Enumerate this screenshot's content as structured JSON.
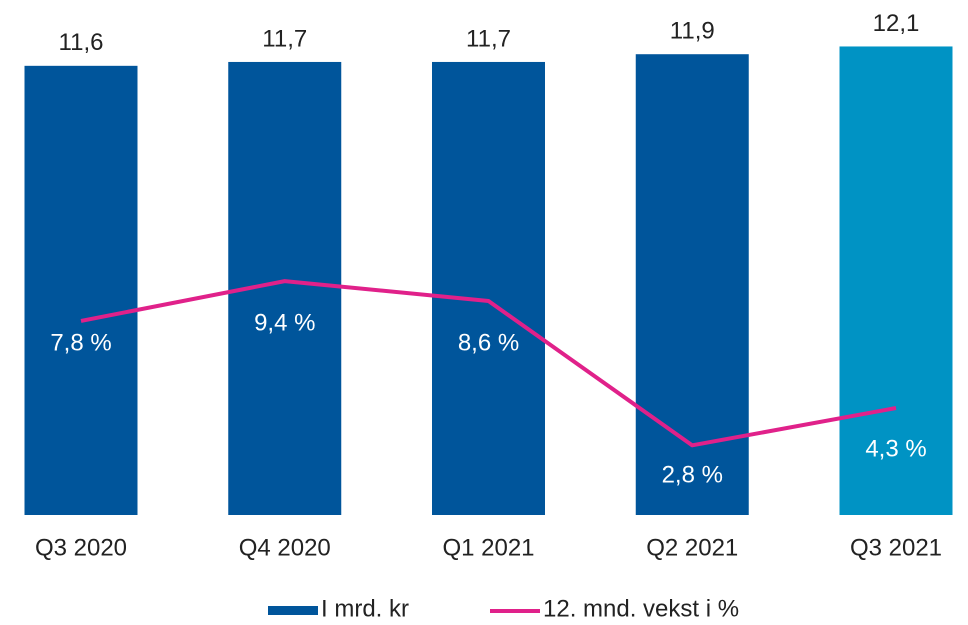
{
  "chart_data": {
    "type": "bar",
    "categories": [
      "Q3 2020",
      "Q4 2020",
      "Q1 2021",
      "Q2 2021",
      "Q3 2021"
    ],
    "ylim": [
      0,
      13.3
    ],
    "y2lim": [
      0,
      20.7
    ],
    "legend": "bottom",
    "series": [
      {
        "name": "I mrd. kr",
        "type": "bar",
        "color": "#00559b",
        "colors": [
          "#00559b",
          "#00559b",
          "#00559b",
          "#00559b",
          "#0093c4"
        ],
        "values": [
          11.6,
          11.7,
          11.7,
          11.9,
          12.1
        ],
        "value_labels": [
          "11,6",
          "11,7",
          "11,7",
          "11,9",
          "12,1"
        ]
      },
      {
        "name": "12. mnd. vekst i %",
        "type": "line",
        "axis": "y2",
        "color": "#e0218a",
        "values": [
          7.8,
          9.4,
          8.6,
          2.8,
          4.3
        ],
        "value_labels": [
          "7,8 %",
          "9,4 %",
          "8,6 %",
          "2,8 %",
          "4,3 %"
        ]
      }
    ]
  }
}
